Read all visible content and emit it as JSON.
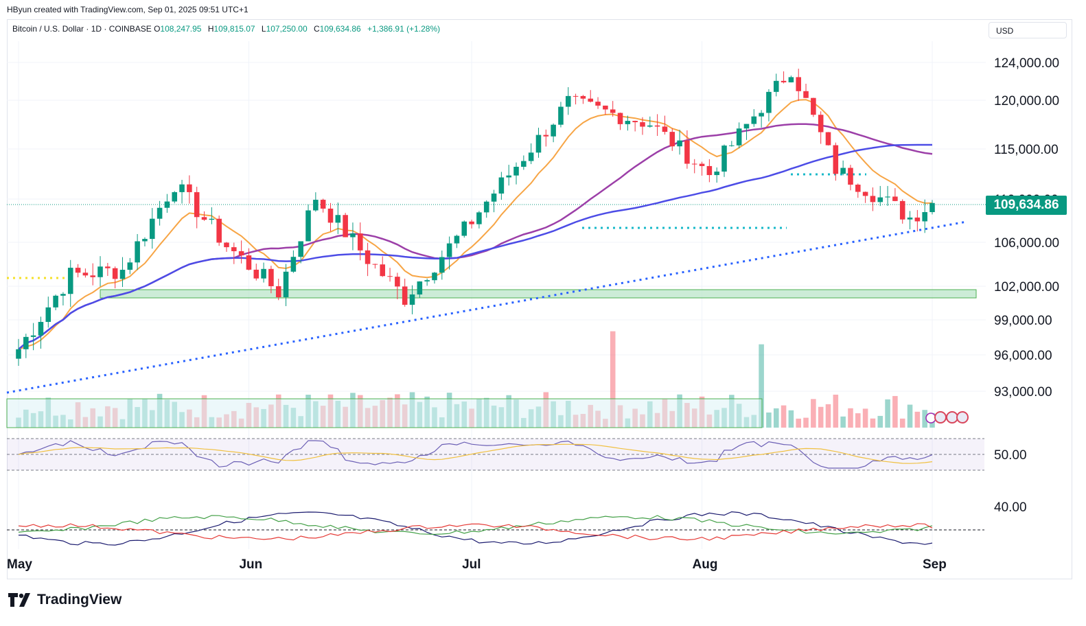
{
  "header": {
    "credit": "HByun created with TradingView.com, Sep 01, 2025 09:51 UTC+1",
    "symbol": "Bitcoin / U.S. Dollar · 1D · COINBASE",
    "open_label": "O",
    "open": "108,247.95",
    "high_label": "H",
    "high": "109,815.07",
    "low_label": "L",
    "low": "107,250.00",
    "close_label": "C",
    "close": "109,634.86",
    "change": "+1,386.91 (+1.28%)",
    "currency": "USD"
  },
  "price_tag": "109,634.86",
  "brand": {
    "name": "TradingView",
    "logo": "tradingview-logo-icon"
  },
  "colors": {
    "up": "#089981",
    "down": "#f23645",
    "ema_fast": "#f7a545",
    "sma_mid": "#9c3fa8",
    "sma_slow": "#4c4ce6",
    "trendline": "#2962ff",
    "rsi": "#6b5fb5",
    "rsi_ma": "#f0c040"
  },
  "chart_data": {
    "type": "line",
    "title": "Bitcoin / U.S. Dollar · 1D · COINBASE",
    "y_axis": {
      "ticks": [
        "124,000.00",
        "120,000.00",
        "115,000.00",
        "110,000.00",
        "106,000.00",
        "102,000.00",
        "99,000.00",
        "96,000.00",
        "93,000.00"
      ],
      "range": [
        92000,
        126000
      ]
    },
    "x_axis": {
      "ticks": [
        "May",
        "Jun",
        "Jul",
        "Aug",
        "Sep"
      ]
    },
    "close_series_approx": [
      {
        "date": "2025-05-01",
        "close": 96500
      },
      {
        "date": "2025-05-08",
        "close": 103000
      },
      {
        "date": "2025-05-15",
        "close": 103500
      },
      {
        "date": "2025-05-22",
        "close": 111500
      },
      {
        "date": "2025-05-29",
        "close": 105700
      },
      {
        "date": "2025-06-05",
        "close": 101500
      },
      {
        "date": "2025-06-10",
        "close": 110200
      },
      {
        "date": "2025-06-17",
        "close": 104500
      },
      {
        "date": "2025-06-22",
        "close": 101000
      },
      {
        "date": "2025-06-30",
        "close": 107100
      },
      {
        "date": "2025-07-10",
        "close": 116000
      },
      {
        "date": "2025-07-14",
        "close": 119800
      },
      {
        "date": "2025-07-25",
        "close": 117600
      },
      {
        "date": "2025-08-02",
        "close": 112500
      },
      {
        "date": "2025-08-13",
        "close": 123300
      },
      {
        "date": "2025-08-19",
        "close": 113000
      },
      {
        "date": "2025-08-25",
        "close": 110100
      },
      {
        "date": "2025-08-29",
        "close": 108300
      },
      {
        "date": "2025-09-01",
        "close": 109634.86
      }
    ],
    "support_zone": [
      101100,
      101900
    ],
    "last_price": 109634.86,
    "rsi_panel": {
      "tick": "50.00"
    },
    "dmi_panel": {
      "tick": "40.00"
    }
  }
}
